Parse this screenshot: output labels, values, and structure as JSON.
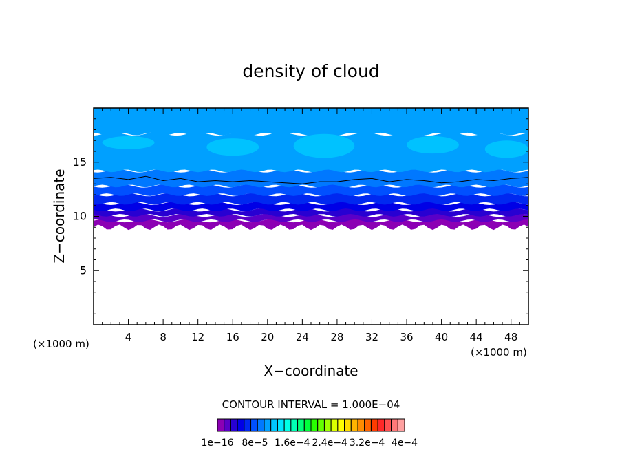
{
  "chart_data": {
    "type": "heatmap",
    "title": "density of cloud",
    "xlabel": "X−coordinate",
    "ylabel": "Z−coordinate",
    "x_unit_left": "(×1000 m)",
    "x_unit_right": "(×1000 m)",
    "xlim": [
      0,
      50
    ],
    "ylim": [
      0,
      20
    ],
    "x_ticks": [
      4,
      8,
      12,
      16,
      20,
      24,
      28,
      32,
      36,
      40,
      44,
      48
    ],
    "x_tick_labels": [
      "4",
      "8",
      "12",
      "16",
      "20",
      "24",
      "28",
      "32",
      "36",
      "40",
      "44",
      "48"
    ],
    "y_ticks": [
      5,
      10,
      15
    ],
    "y_tick_labels": [
      "5",
      "10",
      "15"
    ],
    "contour_interval_label": "CONTOUR INTERVAL = 1.000E−04",
    "colorbar": {
      "min": 1e-16,
      "max": 0.0004,
      "tick_labels": [
        "1e−16",
        "8e−5",
        "1.6e−4",
        "2.4e−4",
        "3.2e−4",
        "4e−4"
      ],
      "colors": [
        "#8c00b4",
        "#5a00c8",
        "#2800d2",
        "#0000e6",
        "#0028f0",
        "#0050ff",
        "#0078ff",
        "#00a0ff",
        "#00c8ff",
        "#00e6ff",
        "#00ffe6",
        "#00ffb4",
        "#00ff78",
        "#00ff3c",
        "#28ff00",
        "#64ff00",
        "#a0ff00",
        "#dcff00",
        "#ffff00",
        "#ffdc00",
        "#ffb400",
        "#ff8c00",
        "#ff6400",
        "#ff3c00",
        "#ff2828",
        "#ff5050",
        "#ff7878",
        "#ffa0a0"
      ]
    },
    "bands": [
      {
        "z_bottom": 9.0,
        "z_top": 9.6,
        "color": "#8c00b4"
      },
      {
        "z_bottom": 9.6,
        "z_top": 10.1,
        "color": "#5a00c8"
      },
      {
        "z_bottom": 10.1,
        "z_top": 10.6,
        "color": "#2800d2"
      },
      {
        "z_bottom": 10.6,
        "z_top": 11.2,
        "color": "#0000e6"
      },
      {
        "z_bottom": 11.2,
        "z_top": 12.0,
        "color": "#0028f0"
      },
      {
        "z_bottom": 12.0,
        "z_top": 12.8,
        "color": "#0050ff"
      },
      {
        "z_bottom": 12.8,
        "z_top": 14.2,
        "color": "#0078ff"
      },
      {
        "z_bottom": 14.2,
        "z_top": 17.6,
        "color": "#00a0ff"
      },
      {
        "z_bottom": 17.6,
        "z_top": 20.0,
        "color": "#00a0ff"
      }
    ],
    "highlight_patches": [
      {
        "x": [
          1,
          7
        ],
        "z": [
          16.2,
          17.4
        ],
        "color": "#00c8ff"
      },
      {
        "x": [
          13,
          19
        ],
        "z": [
          15.6,
          17.2
        ],
        "color": "#00c8ff"
      },
      {
        "x": [
          23,
          30
        ],
        "z": [
          15.4,
          17.6
        ],
        "color": "#00c8ff"
      },
      {
        "x": [
          36,
          42
        ],
        "z": [
          15.8,
          17.4
        ],
        "color": "#00c8ff"
      },
      {
        "x": [
          45,
          50
        ],
        "z": [
          15.4,
          17.0
        ],
        "color": "#00c8ff"
      }
    ],
    "contour_line": {
      "x": [
        0,
        2,
        4,
        6,
        8,
        10,
        12,
        14,
        16,
        18,
        20,
        22,
        24,
        26,
        28,
        30,
        32,
        34,
        36,
        38,
        40,
        42,
        44,
        46,
        48,
        50
      ],
      "z": [
        13.5,
        13.6,
        13.4,
        13.7,
        13.3,
        13.5,
        13.2,
        13.3,
        13.2,
        13.3,
        13.2,
        13.1,
        13.0,
        13.2,
        13.2,
        13.4,
        13.5,
        13.2,
        13.4,
        13.3,
        13.1,
        13.2,
        13.4,
        13.3,
        13.5,
        13.6
      ]
    }
  }
}
